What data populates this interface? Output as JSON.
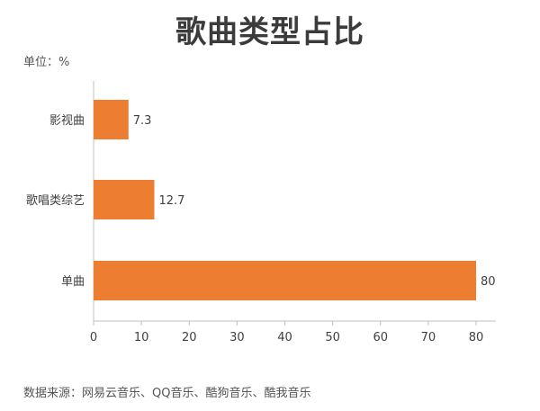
{
  "title": "歌曲类型占比",
  "unit_label": "单位：%",
  "source_label": "数据来源：网易云音乐、QQ音乐、酷狗音乐、酷我音乐",
  "colors": {
    "bar": "#ED7D31",
    "axis": "#BFBFBF",
    "text": "#404040"
  },
  "chart_data": {
    "type": "bar",
    "orientation": "horizontal",
    "title": "歌曲类型占比",
    "categories": [
      "影视曲",
      "歌唱类综艺",
      "单曲"
    ],
    "values": [
      7.3,
      12.7,
      80
    ],
    "value_labels": [
      "7.3",
      "12.7",
      "80"
    ],
    "xlim": [
      0,
      80
    ],
    "xticks": [
      "0",
      "10",
      "20",
      "30",
      "40",
      "50",
      "60",
      "70",
      "80"
    ],
    "xlabel": "",
    "ylabel": "",
    "grid": false,
    "legend": "none"
  }
}
